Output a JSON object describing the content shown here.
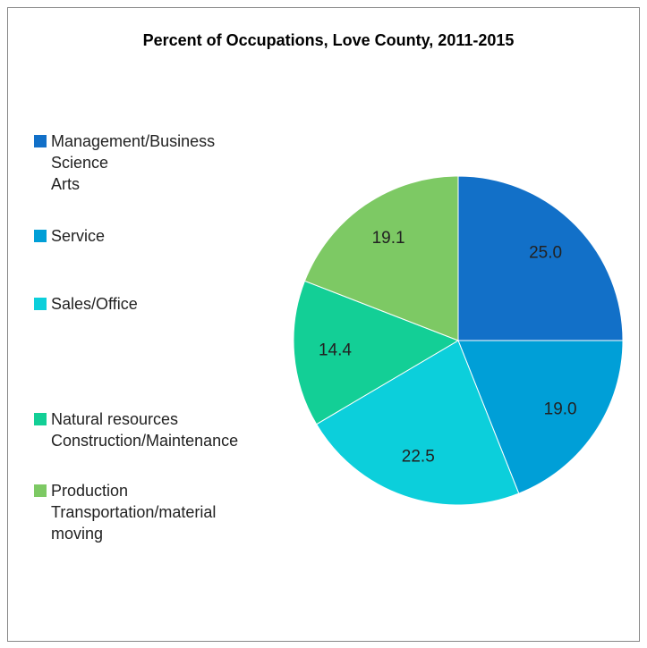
{
  "chart_data": {
    "type": "pie",
    "title": "Percent of Occupations, Love County, 2011-2015",
    "categories": [
      "Management/Business\nScience\nArts",
      "Service",
      "Sales/Office",
      "Natural resources\nConstruction/Maintenance",
      "Production\nTransportation/material\nmoving"
    ],
    "values": [
      25.0,
      19.0,
      22.5,
      14.4,
      19.1
    ],
    "value_labels": [
      "25.0",
      "19.0",
      "22.5",
      "14.4",
      "19.1"
    ],
    "colors": [
      "#1270c8",
      "#009fd7",
      "#0ccfdb",
      "#13cf96",
      "#7dc964"
    ],
    "legend": "left"
  }
}
